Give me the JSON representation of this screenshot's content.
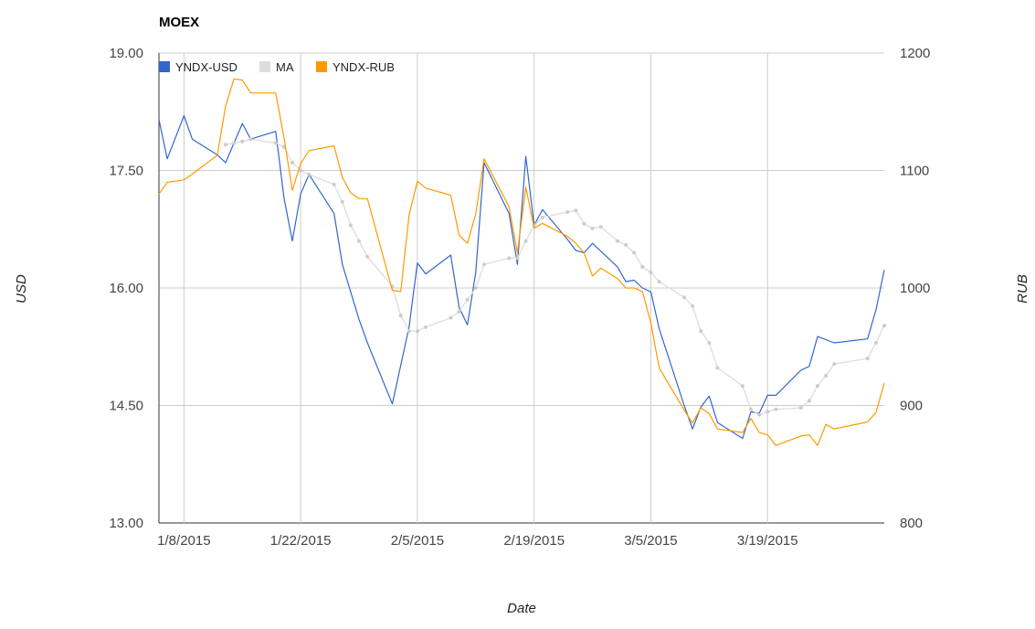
{
  "chart_data": {
    "type": "line",
    "title": "MOEX",
    "xlabel": "Date",
    "ylabel_left": "USD",
    "ylabel_right": "RUB",
    "ylim_left": [
      13.0,
      19.0
    ],
    "ylim_right": [
      800,
      1200
    ],
    "y_ticks_left": [
      "19.00",
      "17.50",
      "16.00",
      "14.50",
      "13.00"
    ],
    "y_ticks_right": [
      "1200",
      "1100",
      "1000",
      "900",
      "800"
    ],
    "x_tick_labels": [
      "1/8/2015",
      "1/22/2015",
      "2/5/2015",
      "2/19/2015",
      "3/5/2015",
      "3/19/2015"
    ],
    "x_tick_days": [
      7,
      21,
      35,
      49,
      63,
      77
    ],
    "xlim_days": [
      4,
      91
    ],
    "grid": true,
    "legend_position": "top-left",
    "series": [
      {
        "name": "YNDX-USD",
        "axis": "left",
        "color": "#3366cc",
        "points": [
          [
            4,
            18.15
          ],
          [
            5,
            17.65
          ],
          [
            7,
            18.2
          ],
          [
            8,
            17.9
          ],
          [
            11,
            17.7
          ],
          [
            12,
            17.6
          ],
          [
            13,
            17.85
          ],
          [
            14,
            18.1
          ],
          [
            15,
            17.9
          ],
          [
            18,
            18.0
          ],
          [
            19,
            17.15
          ],
          [
            20,
            16.6
          ],
          [
            21,
            17.2
          ],
          [
            22,
            17.45
          ],
          [
            25,
            16.95
          ],
          [
            26,
            16.3
          ],
          [
            27,
            15.95
          ],
          [
            28,
            15.6
          ],
          [
            29,
            15.3
          ],
          [
            32,
            14.52
          ],
          [
            34,
            15.5
          ],
          [
            35,
            16.32
          ],
          [
            36,
            16.18
          ],
          [
            39,
            16.42
          ],
          [
            40,
            15.75
          ],
          [
            41,
            15.53
          ],
          [
            42,
            16.2
          ],
          [
            43,
            17.6
          ],
          [
            46,
            16.95
          ],
          [
            47,
            16.3
          ],
          [
            48,
            17.68
          ],
          [
            49,
            16.8
          ],
          [
            50,
            17.0
          ],
          [
            53,
            16.62
          ],
          [
            54,
            16.48
          ],
          [
            55,
            16.45
          ],
          [
            56,
            16.57
          ],
          [
            59,
            16.27
          ],
          [
            60,
            16.08
          ],
          [
            61,
            16.1
          ],
          [
            62,
            16.0
          ],
          [
            63,
            15.95
          ],
          [
            64,
            15.48
          ],
          [
            67,
            14.5
          ],
          [
            68,
            14.2
          ],
          [
            69,
            14.48
          ],
          [
            70,
            14.62
          ],
          [
            71,
            14.28
          ],
          [
            74,
            14.08
          ],
          [
            75,
            14.42
          ],
          [
            76,
            14.4
          ],
          [
            77,
            14.63
          ],
          [
            78,
            14.63
          ],
          [
            81,
            14.95
          ],
          [
            82,
            15.0
          ],
          [
            83,
            15.38
          ],
          [
            85,
            15.3
          ],
          [
            89,
            15.35
          ],
          [
            90,
            15.72
          ],
          [
            91,
            16.23
          ]
        ]
      },
      {
        "name": "MA",
        "axis": "left",
        "color": "#dddddd",
        "points": [
          [
            12,
            17.83
          ],
          [
            13,
            17.85
          ],
          [
            14,
            17.87
          ],
          [
            15,
            17.9
          ],
          [
            18,
            17.85
          ],
          [
            19,
            17.8
          ],
          [
            20,
            17.6
          ],
          [
            21,
            17.5
          ],
          [
            22,
            17.45
          ],
          [
            25,
            17.32
          ],
          [
            26,
            17.1
          ],
          [
            27,
            16.8
          ],
          [
            28,
            16.6
          ],
          [
            29,
            16.4
          ],
          [
            32,
            16.02
          ],
          [
            33,
            15.65
          ],
          [
            34,
            15.45
          ],
          [
            35,
            15.45
          ],
          [
            36,
            15.5
          ],
          [
            39,
            15.62
          ],
          [
            40,
            15.7
          ],
          [
            41,
            15.85
          ],
          [
            42,
            16.0
          ],
          [
            43,
            16.3
          ],
          [
            46,
            16.38
          ],
          [
            47,
            16.38
          ],
          [
            48,
            16.6
          ],
          [
            49,
            16.8
          ],
          [
            50,
            16.9
          ],
          [
            53,
            16.97
          ],
          [
            54,
            16.99
          ],
          [
            55,
            16.82
          ],
          [
            56,
            16.76
          ],
          [
            57,
            16.78
          ],
          [
            59,
            16.6
          ],
          [
            60,
            16.55
          ],
          [
            61,
            16.45
          ],
          [
            62,
            16.27
          ],
          [
            63,
            16.2
          ],
          [
            64,
            16.08
          ],
          [
            67,
            15.88
          ],
          [
            68,
            15.77
          ],
          [
            69,
            15.45
          ],
          [
            70,
            15.3
          ],
          [
            71,
            14.98
          ],
          [
            74,
            14.75
          ],
          [
            75,
            14.45
          ],
          [
            76,
            14.38
          ],
          [
            77,
            14.42
          ],
          [
            78,
            14.45
          ],
          [
            81,
            14.47
          ],
          [
            82,
            14.56
          ],
          [
            83,
            14.75
          ],
          [
            84,
            14.88
          ],
          [
            85,
            15.03
          ],
          [
            89,
            15.1
          ],
          [
            90,
            15.3
          ],
          [
            91,
            15.52
          ]
        ]
      },
      {
        "name": "YNDX-RUB",
        "axis": "right",
        "color": "#ff9900",
        "points": [
          [
            4,
            1080
          ],
          [
            5,
            1090
          ],
          [
            7,
            1092
          ],
          [
            8,
            1097
          ],
          [
            11,
            1113
          ],
          [
            12,
            1155
          ],
          [
            13,
            1178
          ],
          [
            14,
            1177
          ],
          [
            15,
            1166
          ],
          [
            18,
            1166
          ],
          [
            19,
            1128
          ],
          [
            20,
            1083
          ],
          [
            21,
            1106
          ],
          [
            22,
            1117
          ],
          [
            25,
            1121
          ],
          [
            26,
            1094
          ],
          [
            27,
            1081
          ],
          [
            28,
            1076
          ],
          [
            29,
            1076
          ],
          [
            32,
            998
          ],
          [
            33,
            997
          ],
          [
            34,
            1062
          ],
          [
            35,
            1091
          ],
          [
            36,
            1085
          ],
          [
            39,
            1079
          ],
          [
            40,
            1045
          ],
          [
            41,
            1038
          ],
          [
            42,
            1063
          ],
          [
            43,
            1110
          ],
          [
            46,
            1069
          ],
          [
            47,
            1030
          ],
          [
            48,
            1086
          ],
          [
            49,
            1051
          ],
          [
            50,
            1055
          ],
          [
            53,
            1044
          ],
          [
            54,
            1038
          ],
          [
            55,
            1030
          ],
          [
            56,
            1010
          ],
          [
            57,
            1017
          ],
          [
            59,
            1008
          ],
          [
            60,
            1000
          ],
          [
            61,
            1000
          ],
          [
            62,
            997
          ],
          [
            63,
            970
          ],
          [
            64,
            932
          ],
          [
            67,
            896
          ],
          [
            68,
            885
          ],
          [
            69,
            898
          ],
          [
            70,
            893
          ],
          [
            71,
            880
          ],
          [
            74,
            877
          ],
          [
            75,
            889
          ],
          [
            76,
            877
          ],
          [
            77,
            875
          ],
          [
            78,
            866
          ],
          [
            81,
            874
          ],
          [
            82,
            875
          ],
          [
            83,
            866
          ],
          [
            84,
            884
          ],
          [
            85,
            880
          ],
          [
            89,
            886
          ],
          [
            90,
            894
          ],
          [
            91,
            919
          ]
        ]
      }
    ]
  }
}
